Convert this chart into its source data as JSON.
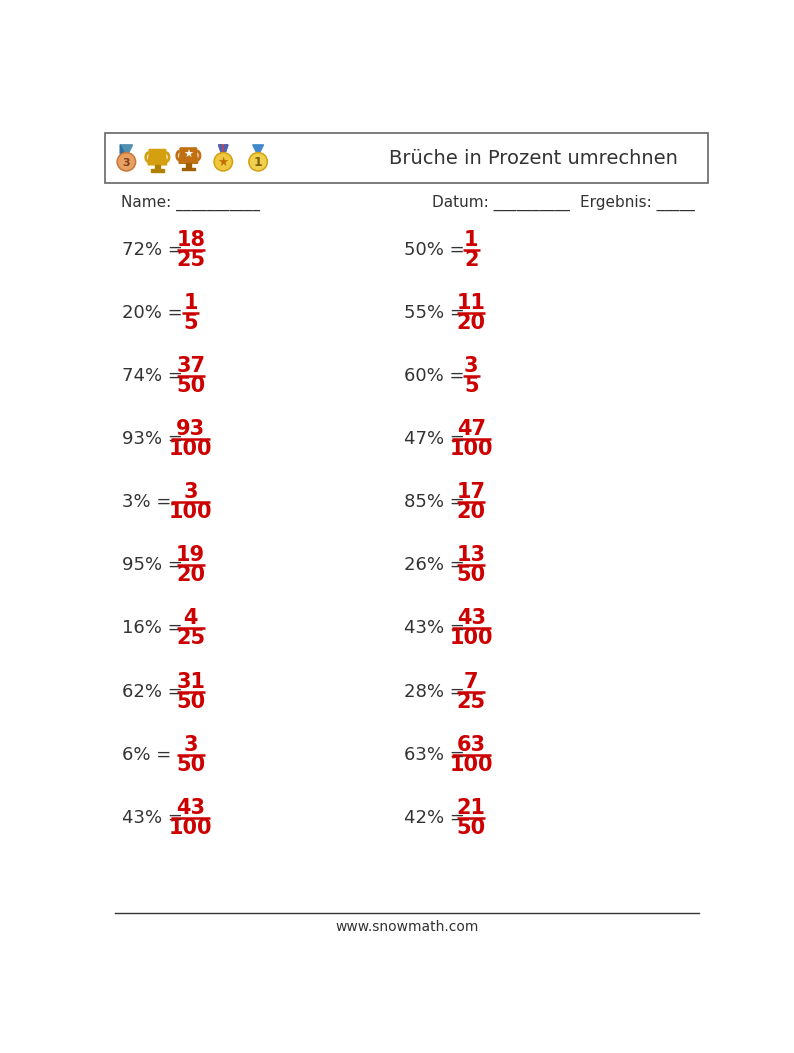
{
  "title": "Brüche in Prozent umrechnen",
  "header_label_name": "Name: ___________",
  "header_label_datum": "Datum: __________",
  "header_label_ergebnis": "Ergebnis: _____",
  "footer_text": "www.snowmath.com",
  "fraction_color": "#cc0000",
  "text_color": "#333333",
  "background_color": "#ffffff",
  "problems": [
    {
      "left": {
        "percent": "72%",
        "numerator": "18",
        "denominator": "25"
      },
      "right": {
        "percent": "50%",
        "numerator": "1",
        "denominator": "2"
      }
    },
    {
      "left": {
        "percent": "20%",
        "numerator": "1",
        "denominator": "5"
      },
      "right": {
        "percent": "55%",
        "numerator": "11",
        "denominator": "20"
      }
    },
    {
      "left": {
        "percent": "74%",
        "numerator": "37",
        "denominator": "50"
      },
      "right": {
        "percent": "60%",
        "numerator": "3",
        "denominator": "5"
      }
    },
    {
      "left": {
        "percent": "93%",
        "numerator": "93",
        "denominator": "100"
      },
      "right": {
        "percent": "47%",
        "numerator": "47",
        "denominator": "100"
      }
    },
    {
      "left": {
        "percent": "3%",
        "numerator": "3",
        "denominator": "100"
      },
      "right": {
        "percent": "85%",
        "numerator": "17",
        "denominator": "20"
      }
    },
    {
      "left": {
        "percent": "95%",
        "numerator": "19",
        "denominator": "20"
      },
      "right": {
        "percent": "26%",
        "numerator": "13",
        "denominator": "50"
      }
    },
    {
      "left": {
        "percent": "16%",
        "numerator": "4",
        "denominator": "25"
      },
      "right": {
        "percent": "43%",
        "numerator": "43",
        "denominator": "100"
      }
    },
    {
      "left": {
        "percent": "62%",
        "numerator": "31",
        "denominator": "50"
      },
      "right": {
        "percent": "28%",
        "numerator": "7",
        "denominator": "25"
      }
    },
    {
      "left": {
        "percent": "6%",
        "numerator": "3",
        "denominator": "50"
      },
      "right": {
        "percent": "63%",
        "numerator": "63",
        "denominator": "100"
      }
    },
    {
      "left": {
        "percent": "43%",
        "numerator": "43",
        "denominator": "100"
      },
      "right": {
        "percent": "42%",
        "numerator": "21",
        "denominator": "50"
      }
    }
  ],
  "trophy_colors": {
    "medal_bronze": [
      "#c8763a",
      "#e8a060"
    ],
    "medal_gold": [
      "#d4a010",
      "#f0c840"
    ],
    "cup_gold": [
      "#d4a010",
      "#f0c840"
    ],
    "ribbon_multi": [
      "#e05050",
      "#4080c0"
    ],
    "badge_gold": [
      "#d4a010",
      "#f0c840"
    ]
  }
}
